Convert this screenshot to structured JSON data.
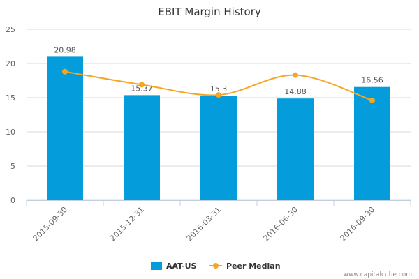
{
  "chart_data": {
    "type": "bar",
    "title": "EBIT Margin History",
    "categories": [
      "2015-09-30",
      "2015-12-31",
      "2016-03-31",
      "2016-06-30",
      "2016-09-30"
    ],
    "series": [
      {
        "name": "AAT-US",
        "type": "bar",
        "values": [
          20.98,
          15.37,
          15.3,
          14.88,
          16.56
        ],
        "color": "#049cdb"
      },
      {
        "name": "Peer Median",
        "type": "line",
        "values": [
          18.8,
          16.9,
          15.4,
          18.3,
          14.6
        ],
        "color": "#f5a623"
      }
    ],
    "data_labels": [
      "20.98",
      "15.37",
      "15.3",
      "14.88",
      "16.56"
    ],
    "y_ticks": [
      "0",
      "5",
      "10",
      "15",
      "20",
      "25"
    ],
    "ylim": [
      0,
      25
    ],
    "grid": true,
    "legend_position": "bottom"
  },
  "credit": "www.capitalcube.com"
}
